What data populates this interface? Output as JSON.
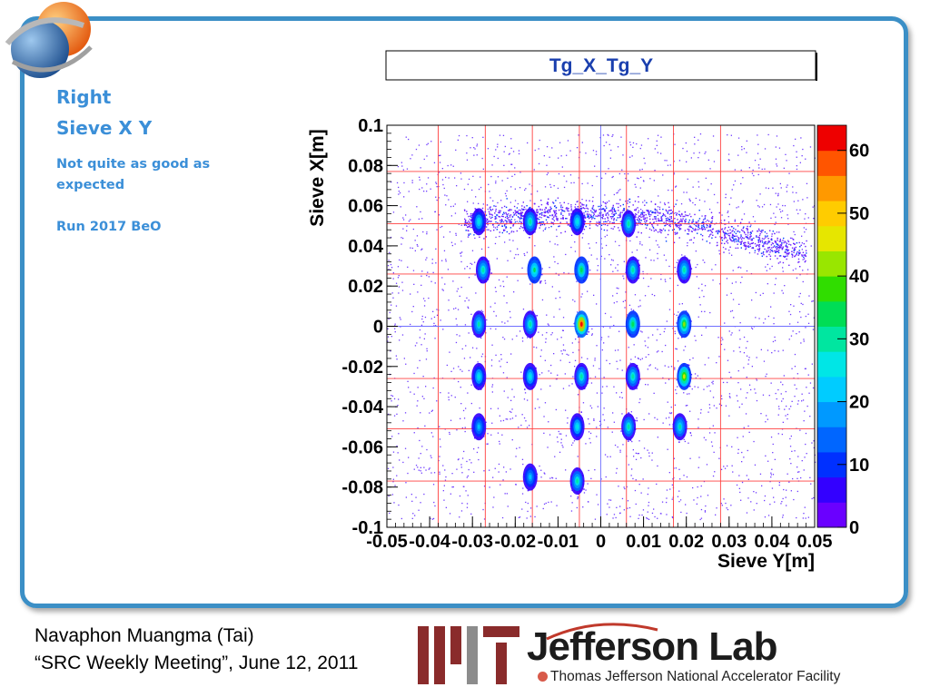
{
  "sidebar": {
    "title_line1": "Right",
    "title_line2": "Sieve X Y",
    "note": "Not quite as good as expected",
    "run": "Run 2017 BeO"
  },
  "footer": {
    "author": "Navaphon Muangma (Tai)",
    "meeting": "“SRC Weekly Meeting”, June 12, 2011"
  },
  "logos": {
    "jlab_name": "Jefferson Lab",
    "jlab_tagline": "Thomas Jefferson National Accelerator Facility",
    "mit_color": "#8a2b2b",
    "mit_gray": "#8c8c8c"
  },
  "colors": {
    "frame": "#3b8fc6",
    "sidebar_text": "#3b8fd8",
    "grid": "#ff4040",
    "zero_line": "#7070ff"
  },
  "chart_data": {
    "type": "heatmap",
    "title": "Tg_X_Tg_Y",
    "xlabel": "Sieve Y[m]",
    "ylabel": "Sieve X[m]",
    "xlim": [
      -0.05,
      0.05
    ],
    "ylim": [
      -0.1,
      0.1
    ],
    "x_ticks": [
      "-0.05",
      "-0.04",
      "-0.03",
      "-0.02",
      "-0.01",
      "0",
      "0.01",
      "0.02",
      "0.03",
      "0.04",
      "0.05"
    ],
    "y_ticks": [
      "-0.1",
      "-0.08",
      "-0.06",
      "-0.04",
      "-0.02",
      "0",
      "0.02",
      "0.04",
      "0.06",
      "0.08",
      "0.1"
    ],
    "grid": true,
    "colorbar": {
      "min": 0,
      "max": 64,
      "ticks": [
        "0",
        "10",
        "20",
        "30",
        "40",
        "50",
        "60"
      ]
    },
    "grid_lines_x": [
      -0.038,
      -0.027,
      -0.016,
      -0.005,
      0.006,
      0.017,
      0.028
    ],
    "grid_lines_y": [
      -0.077,
      -0.051,
      -0.026,
      0.0,
      0.026,
      0.051,
      0.077
    ],
    "hole_spots": [
      {
        "x": -0.0285,
        "y": 0.052,
        "peak": 25
      },
      {
        "x": -0.0165,
        "y": 0.052,
        "peak": 30
      },
      {
        "x": -0.0055,
        "y": 0.052,
        "peak": 25
      },
      {
        "x": 0.0065,
        "y": 0.051,
        "peak": 30
      },
      {
        "x": -0.0275,
        "y": 0.028,
        "peak": 30
      },
      {
        "x": -0.0155,
        "y": 0.028,
        "peak": 32
      },
      {
        "x": -0.0045,
        "y": 0.028,
        "peak": 35
      },
      {
        "x": 0.0075,
        "y": 0.028,
        "peak": 30
      },
      {
        "x": 0.0195,
        "y": 0.028,
        "peak": 30
      },
      {
        "x": -0.0285,
        "y": 0.001,
        "peak": 28
      },
      {
        "x": -0.0165,
        "y": 0.001,
        "peak": 30
      },
      {
        "x": -0.0045,
        "y": 0.001,
        "peak": 62
      },
      {
        "x": 0.0075,
        "y": 0.001,
        "peak": 35
      },
      {
        "x": 0.0195,
        "y": 0.001,
        "peak": 40
      },
      {
        "x": -0.0285,
        "y": -0.025,
        "peak": 25
      },
      {
        "x": -0.0165,
        "y": -0.025,
        "peak": 25
      },
      {
        "x": -0.0045,
        "y": -0.025,
        "peak": 30
      },
      {
        "x": 0.0075,
        "y": -0.025,
        "peak": 30
      },
      {
        "x": 0.0195,
        "y": -0.025,
        "peak": 45
      },
      {
        "x": -0.0285,
        "y": -0.05,
        "peak": 22
      },
      {
        "x": -0.0055,
        "y": -0.05,
        "peak": 25
      },
      {
        "x": 0.0065,
        "y": -0.05,
        "peak": 30
      },
      {
        "x": 0.0185,
        "y": -0.05,
        "peak": 28
      },
      {
        "x": -0.0165,
        "y": -0.075,
        "peak": 22
      },
      {
        "x": -0.0055,
        "y": -0.077,
        "peak": 30
      }
    ]
  }
}
